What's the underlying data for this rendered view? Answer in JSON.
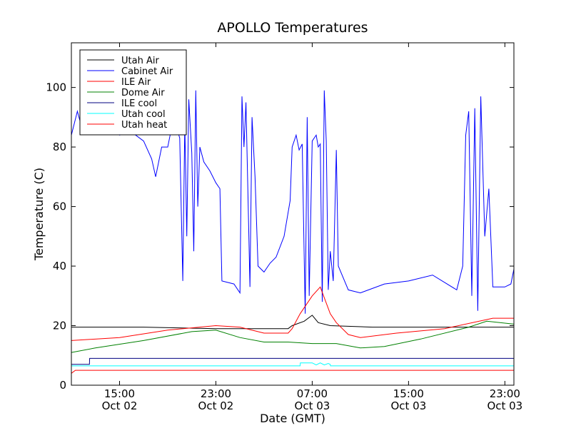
{
  "chart_data": {
    "type": "line",
    "title": "APOLLO Temperatures",
    "xlabel": "Date (GMT)",
    "ylabel": "Temperature (C)",
    "ylim": [
      0,
      115
    ],
    "xlim": [
      "2014-10-02 11:00",
      "2014-10-03 23:45"
    ],
    "grid": false,
    "legend_position": "top-left",
    "y_ticks": [
      {
        "value": 0,
        "label": "0"
      },
      {
        "value": 20,
        "label": "20"
      },
      {
        "value": 40,
        "label": "40"
      },
      {
        "value": 60,
        "label": "60"
      },
      {
        "value": 80,
        "label": "80"
      },
      {
        "value": 100,
        "label": "100"
      }
    ],
    "x_ticks": [
      {
        "x": "2014-10-02 15:00",
        "time": "15:00",
        "date": "Oct 02"
      },
      {
        "x": "2014-10-02 23:00",
        "time": "23:00",
        "date": "Oct 02"
      },
      {
        "x": "2014-10-03 07:00",
        "time": "07:00",
        "date": "Oct 03"
      },
      {
        "x": "2014-10-03 15:00",
        "time": "15:00",
        "date": "Oct 03"
      },
      {
        "x": "2014-10-03 23:00",
        "time": "23:00",
        "date": "Oct 03"
      }
    ],
    "series": [
      {
        "name": "Utah Air",
        "color": "#000000",
        "points": [
          [
            "2014-10-02 11:00",
            19.5
          ],
          [
            "2014-10-02 17:00",
            19.5
          ],
          [
            "2014-10-02 23:00",
            19.0
          ],
          [
            "2014-10-03 05:00",
            19.0
          ],
          [
            "2014-10-03 05:20",
            20.0
          ],
          [
            "2014-10-03 06:20",
            21.5
          ],
          [
            "2014-10-03 07:00",
            23.5
          ],
          [
            "2014-10-03 07:30",
            21.0
          ],
          [
            "2014-10-03 08:30",
            20.0
          ],
          [
            "2014-10-03 12:00",
            19.5
          ],
          [
            "2014-10-03 18:00",
            19.5
          ],
          [
            "2014-10-03 23:45",
            19.5
          ]
        ]
      },
      {
        "name": "Cabinet Air",
        "color": "#0000ff",
        "points": [
          [
            "2014-10-02 11:00",
            84
          ],
          [
            "2014-10-02 11:15",
            88
          ],
          [
            "2014-10-02 11:30",
            92
          ],
          [
            "2014-10-02 11:50",
            87
          ],
          [
            "2014-10-02 12:30",
            89
          ],
          [
            "2014-10-02 13:00",
            88
          ],
          [
            "2014-10-02 14:00",
            86
          ],
          [
            "2014-10-02 15:00",
            84
          ],
          [
            "2014-10-02 16:00",
            85
          ],
          [
            "2014-10-02 17:00",
            82
          ],
          [
            "2014-10-02 17:40",
            76
          ],
          [
            "2014-10-02 18:00",
            70
          ],
          [
            "2014-10-02 18:30",
            80
          ],
          [
            "2014-10-02 19:00",
            80
          ],
          [
            "2014-10-02 19:30",
            90
          ],
          [
            "2014-10-02 20:00",
            83
          ],
          [
            "2014-10-02 20:15",
            35
          ],
          [
            "2014-10-02 20:25",
            88
          ],
          [
            "2014-10-02 20:35",
            50
          ],
          [
            "2014-10-02 20:45",
            96
          ],
          [
            "2014-10-02 21:00",
            78
          ],
          [
            "2014-10-02 21:10",
            45
          ],
          [
            "2014-10-02 21:20",
            99
          ],
          [
            "2014-10-02 21:30",
            60
          ],
          [
            "2014-10-02 21:40",
            80
          ],
          [
            "2014-10-02 22:00",
            75
          ],
          [
            "2014-10-02 22:30",
            72
          ],
          [
            "2014-10-02 23:00",
            68
          ],
          [
            "2014-10-02 23:20",
            66
          ],
          [
            "2014-10-02 23:30",
            35
          ],
          [
            "2014-10-03 00:30",
            34
          ],
          [
            "2014-10-03 01:00",
            31
          ],
          [
            "2014-10-03 01:10",
            97
          ],
          [
            "2014-10-03 01:20",
            80
          ],
          [
            "2014-10-03 01:30",
            95
          ],
          [
            "2014-10-03 01:50",
            33
          ],
          [
            "2014-10-03 02:00",
            90
          ],
          [
            "2014-10-03 02:15",
            70
          ],
          [
            "2014-10-03 02:30",
            40
          ],
          [
            "2014-10-03 03:00",
            38
          ],
          [
            "2014-10-03 03:30",
            41
          ],
          [
            "2014-10-03 04:00",
            43
          ],
          [
            "2014-10-03 04:40",
            50
          ],
          [
            "2014-10-03 05:10",
            62
          ],
          [
            "2014-10-03 05:20",
            80
          ],
          [
            "2014-10-03 05:40",
            84
          ],
          [
            "2014-10-03 05:55",
            79
          ],
          [
            "2014-10-03 06:10",
            81
          ],
          [
            "2014-10-03 06:25",
            24
          ],
          [
            "2014-10-03 06:35",
            90
          ],
          [
            "2014-10-03 06:45",
            30
          ],
          [
            "2014-10-03 07:00",
            82
          ],
          [
            "2014-10-03 07:20",
            84
          ],
          [
            "2014-10-03 07:30",
            80
          ],
          [
            "2014-10-03 07:40",
            81
          ],
          [
            "2014-10-03 07:50",
            28
          ],
          [
            "2014-10-03 08:00",
            99
          ],
          [
            "2014-10-03 08:10",
            82
          ],
          [
            "2014-10-03 08:20",
            32
          ],
          [
            "2014-10-03 08:30",
            45
          ],
          [
            "2014-10-03 08:45",
            35
          ],
          [
            "2014-10-03 09:00",
            79
          ],
          [
            "2014-10-03 09:10",
            40
          ],
          [
            "2014-10-03 10:00",
            32
          ],
          [
            "2014-10-03 11:00",
            31
          ],
          [
            "2014-10-03 13:00",
            34
          ],
          [
            "2014-10-03 15:00",
            35
          ],
          [
            "2014-10-03 17:00",
            37
          ],
          [
            "2014-10-03 19:00",
            32
          ],
          [
            "2014-10-03 19:30",
            40
          ],
          [
            "2014-10-03 19:45",
            84
          ],
          [
            "2014-10-03 20:00",
            92
          ],
          [
            "2014-10-03 20:15",
            30
          ],
          [
            "2014-10-03 20:30",
            93
          ],
          [
            "2014-10-03 20:45",
            25
          ],
          [
            "2014-10-03 21:00",
            97
          ],
          [
            "2014-10-03 21:20",
            50
          ],
          [
            "2014-10-03 21:40",
            66
          ],
          [
            "2014-10-03 22:00",
            33
          ],
          [
            "2014-10-03 23:00",
            33
          ],
          [
            "2014-10-03 23:30",
            34
          ],
          [
            "2014-10-03 23:45",
            39
          ]
        ]
      },
      {
        "name": "ILE Air",
        "color": "#ff0000",
        "points": [
          [
            "2014-10-02 11:00",
            15
          ],
          [
            "2014-10-02 15:00",
            16
          ],
          [
            "2014-10-02 19:00",
            18.5
          ],
          [
            "2014-10-02 23:00",
            20
          ],
          [
            "2014-10-03 01:00",
            19.5
          ],
          [
            "2014-10-03 03:00",
            17.5
          ],
          [
            "2014-10-03 05:00",
            17.5
          ],
          [
            "2014-10-03 05:20",
            19
          ],
          [
            "2014-10-03 06:00",
            24
          ],
          [
            "2014-10-03 07:00",
            30
          ],
          [
            "2014-10-03 07:40",
            33
          ],
          [
            "2014-10-03 08:30",
            24
          ],
          [
            "2014-10-03 09:00",
            21
          ],
          [
            "2014-10-03 10:00",
            17
          ],
          [
            "2014-10-03 11:00",
            16
          ],
          [
            "2014-10-03 14:00",
            17.5
          ],
          [
            "2014-10-03 18:00",
            19
          ],
          [
            "2014-10-03 22:00",
            22.5
          ],
          [
            "2014-10-03 23:45",
            22.5
          ]
        ]
      },
      {
        "name": "Dome Air",
        "color": "#008000",
        "points": [
          [
            "2014-10-02 11:00",
            11
          ],
          [
            "2014-10-02 13:00",
            12.5
          ],
          [
            "2014-10-02 17:00",
            15
          ],
          [
            "2014-10-02 21:00",
            18
          ],
          [
            "2014-10-02 23:00",
            18.5
          ],
          [
            "2014-10-03 01:00",
            16
          ],
          [
            "2014-10-03 03:00",
            14.5
          ],
          [
            "2014-10-03 05:00",
            14.5
          ],
          [
            "2014-10-03 07:00",
            14
          ],
          [
            "2014-10-03 09:00",
            14
          ],
          [
            "2014-10-03 11:00",
            12.5
          ],
          [
            "2014-10-03 13:00",
            13
          ],
          [
            "2014-10-03 16:00",
            15.5
          ],
          [
            "2014-10-03 20:00",
            19.5
          ],
          [
            "2014-10-03 21:30",
            21.5
          ],
          [
            "2014-10-03 23:45",
            20.5
          ]
        ]
      },
      {
        "name": "ILE cool",
        "color": "#000080",
        "points": [
          [
            "2014-10-02 11:00",
            7
          ],
          [
            "2014-10-02 12:30",
            7
          ],
          [
            "2014-10-02 12:31",
            9
          ],
          [
            "2014-10-03 23:45",
            9
          ]
        ]
      },
      {
        "name": "Utah cool",
        "color": "#00ffff",
        "points": [
          [
            "2014-10-02 11:00",
            6.5
          ],
          [
            "2014-10-03 06:00",
            6.5
          ],
          [
            "2014-10-03 06:01",
            7.5
          ],
          [
            "2014-10-03 07:00",
            7.5
          ],
          [
            "2014-10-03 07:20",
            6.8
          ],
          [
            "2014-10-03 07:40",
            7.5
          ],
          [
            "2014-10-03 08:00",
            6.8
          ],
          [
            "2014-10-03 08:20",
            7.3
          ],
          [
            "2014-10-03 08:30",
            7
          ],
          [
            "2014-10-03 08:31",
            6.5
          ],
          [
            "2014-10-03 23:45",
            6.5
          ]
        ]
      },
      {
        "name": "Utah heat",
        "color": "#ff0000",
        "points": [
          [
            "2014-10-02 11:00",
            4
          ],
          [
            "2014-10-02 11:20",
            5
          ],
          [
            "2014-10-03 23:45",
            5
          ]
        ]
      }
    ]
  }
}
